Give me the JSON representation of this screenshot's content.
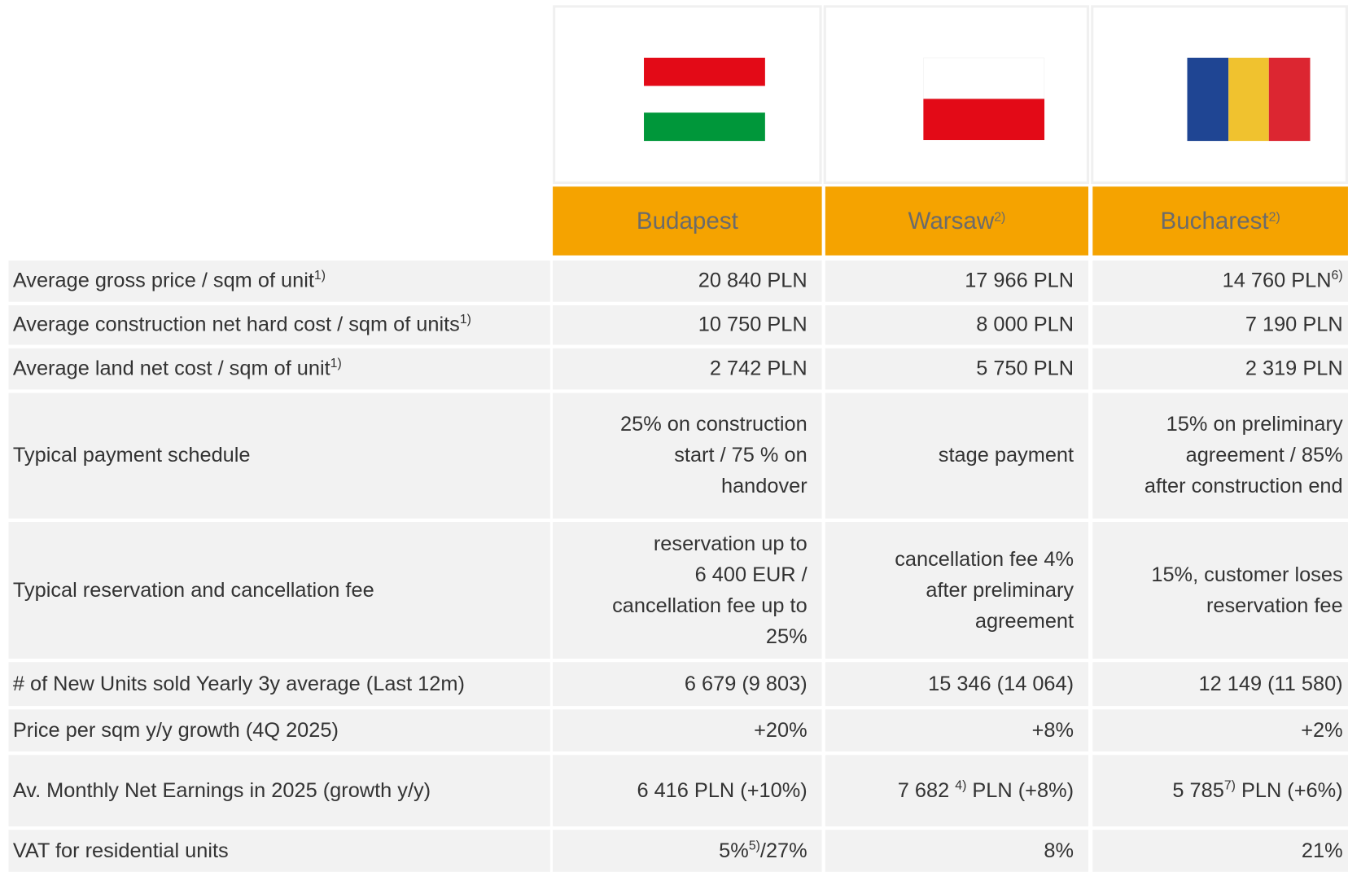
{
  "columns": [
    [
      [
        "Budapest"
      ]
    ],
    [
      [
        "Warsaw",
        {
          "sup": "2)"
        }
      ]
    ],
    [
      [
        "Bucharest",
        {
          "sup": "2)"
        }
      ]
    ]
  ],
  "rows": [
    {
      "label": [
        [
          "Average gross price / sqm of unit",
          {
            "sup": "1)"
          }
        ]
      ],
      "cells": [
        [
          [
            "20 840 PLN"
          ]
        ],
        [
          [
            "17 966 PLN"
          ]
        ],
        [
          [
            "14 760 PLN",
            {
              "sup": "6)"
            }
          ]
        ]
      ]
    },
    {
      "label": [
        [
          "Average construction net hard cost / sqm of units",
          {
            "sup": "1)"
          }
        ]
      ],
      "cells": [
        [
          [
            "10 750 PLN"
          ]
        ],
        [
          [
            "8 000 PLN"
          ]
        ],
        [
          [
            "7 190 PLN"
          ]
        ]
      ]
    },
    {
      "label": [
        [
          "Average land net cost / sqm of unit",
          {
            "sup": "1)"
          }
        ]
      ],
      "cells": [
        [
          [
            "2 742 PLN"
          ]
        ],
        [
          [
            "5 750 PLN"
          ]
        ],
        [
          [
            "2 319 PLN"
          ]
        ]
      ]
    },
    {
      "label": [
        [
          "Typical payment schedule"
        ]
      ],
      "cells": [
        [
          [
            "25% on construction"
          ],
          [
            "start / 75 % on"
          ],
          [
            "handover"
          ]
        ],
        [
          [
            "stage payment"
          ]
        ],
        [
          [
            "15% on preliminary"
          ],
          [
            "agreement / 85%"
          ],
          [
            "after construction end"
          ]
        ]
      ]
    },
    {
      "label": [
        [
          "Typical reservation and cancellation fee"
        ]
      ],
      "cells": [
        [
          [
            "reservation up to"
          ],
          [
            "6 400 EUR /"
          ],
          [
            "cancellation fee up to"
          ],
          [
            "25%"
          ]
        ],
        [
          [
            "cancellation fee 4%"
          ],
          [
            "after preliminary"
          ],
          [
            "agreement"
          ]
        ],
        [
          [
            "15%,  customer loses"
          ],
          [
            "reservation fee"
          ]
        ]
      ]
    },
    {
      "label": [
        [
          "# of New Units sold Yearly 3y average (Last 12m)"
        ]
      ],
      "cells": [
        [
          [
            "6 679 (9 803)"
          ]
        ],
        [
          [
            "15 346 (14 064)"
          ]
        ],
        [
          [
            "12 149 (11 580)"
          ]
        ]
      ]
    },
    {
      "label": [
        [
          "Price per sqm  y/y  growth  (4Q 2025)"
        ]
      ],
      "cells": [
        [
          [
            "+20%"
          ]
        ],
        [
          [
            "+8%"
          ]
        ],
        [
          [
            "+2%"
          ]
        ]
      ]
    },
    {
      "label": [
        [
          "Av. Monthly Net Earnings in 2025 (growth y/y)"
        ]
      ],
      "cells": [
        [
          [
            "6 416 PLN (+10%)"
          ]
        ],
        [
          [
            "7 682 ",
            {
              "sup": "4)"
            },
            " PLN (+8%)"
          ]
        ],
        [
          [
            "5 785",
            {
              "sup": "7)"
            },
            "  PLN (+6%)"
          ]
        ]
      ]
    },
    {
      "label": [
        [
          "VAT for residential units"
        ]
      ],
      "cells": [
        [
          [
            "5%",
            {
              "sup": "5)"
            },
            "/27%"
          ]
        ],
        [
          [
            "8%"
          ]
        ],
        [
          [
            "21%"
          ]
        ]
      ]
    }
  ]
}
